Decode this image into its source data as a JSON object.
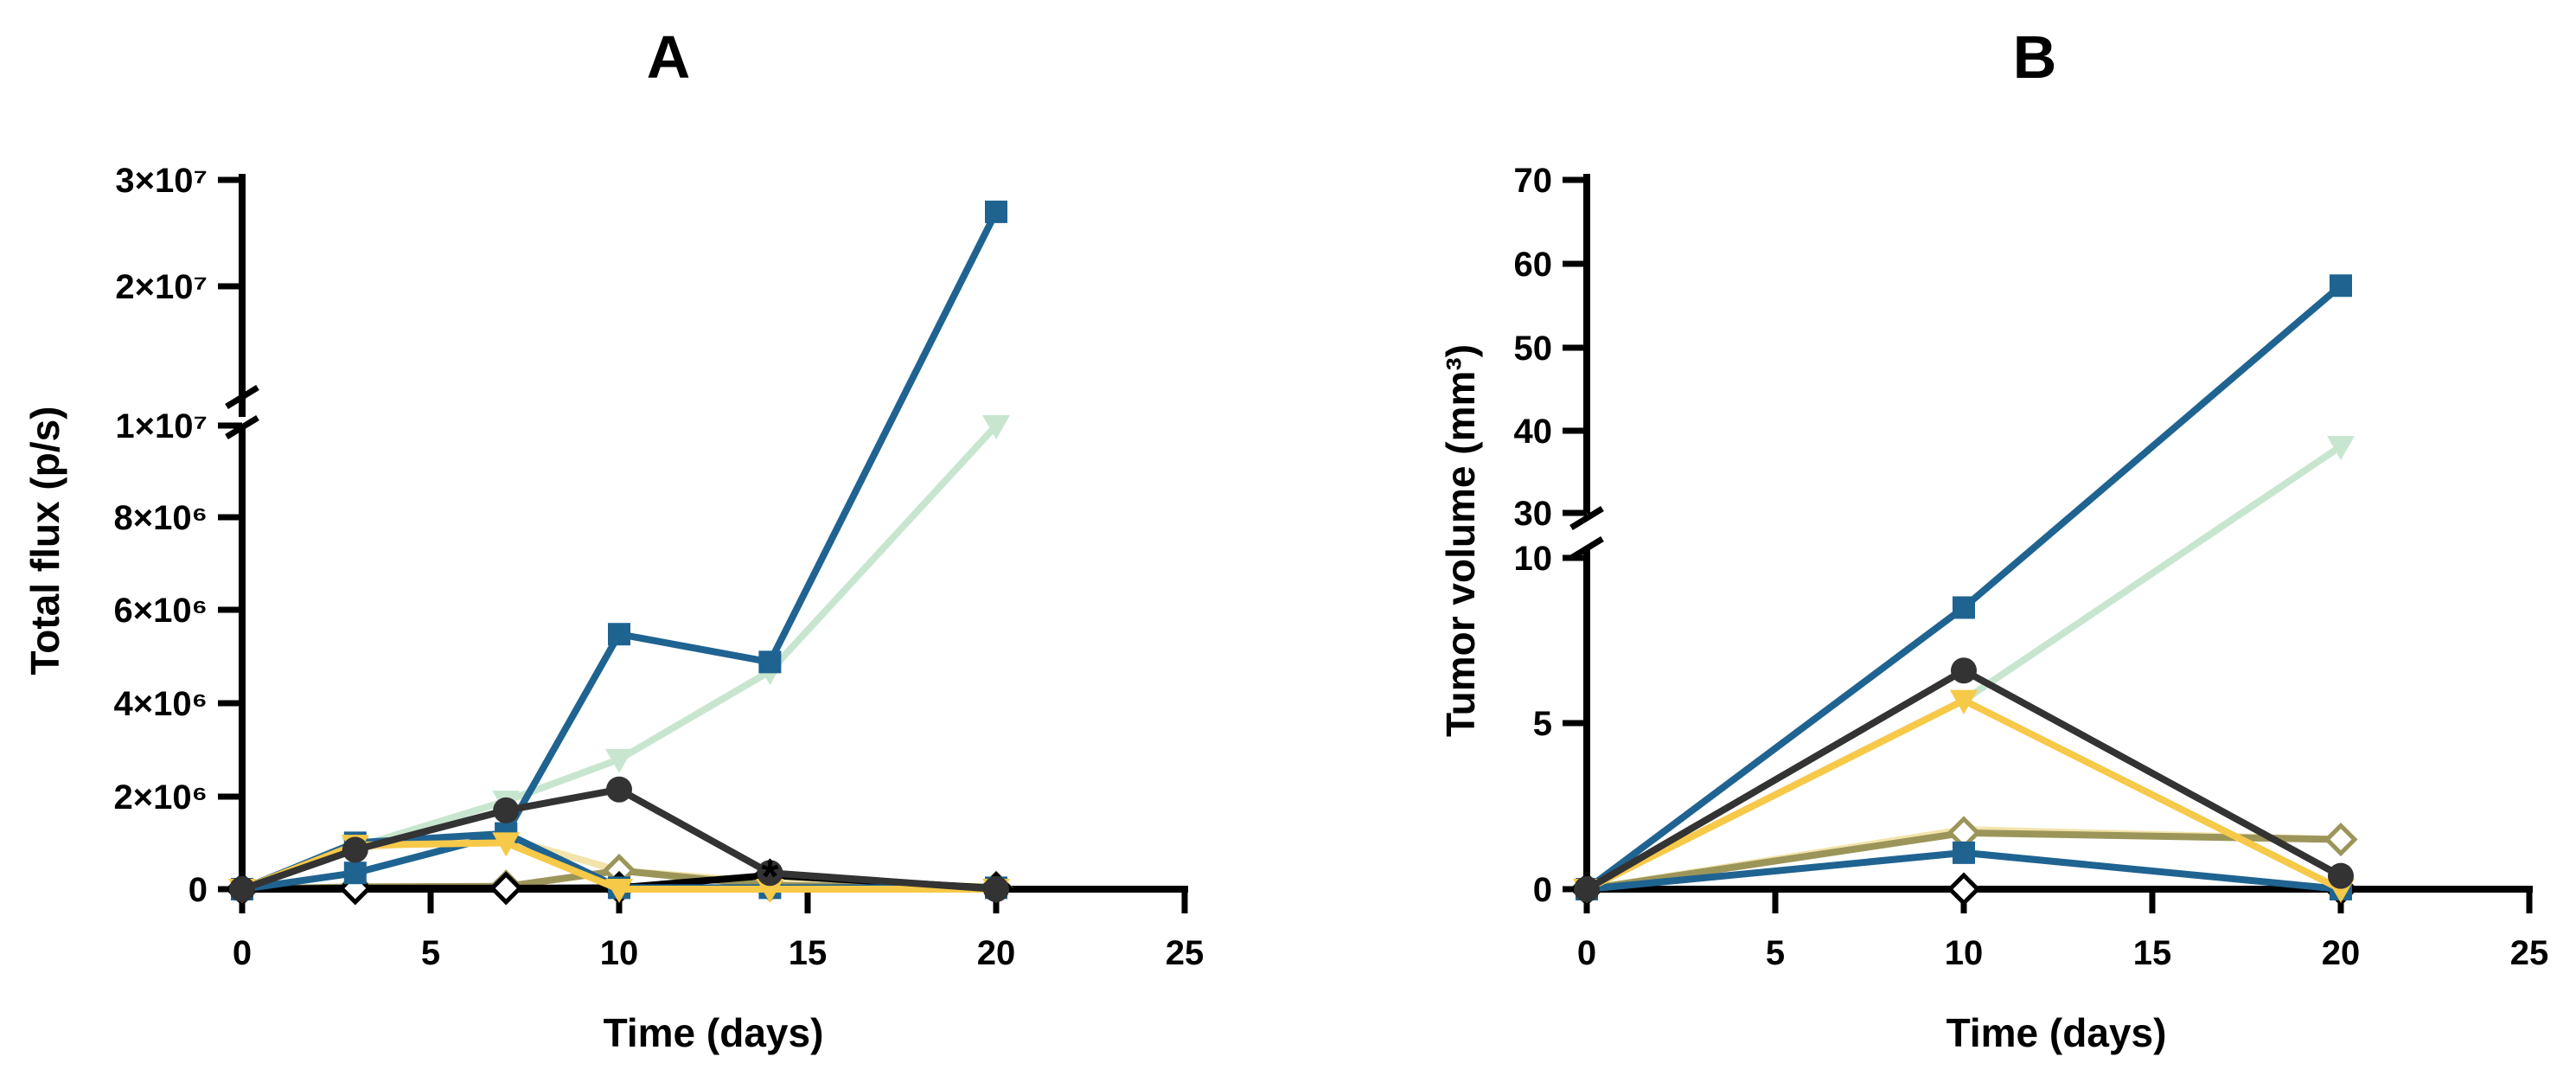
{
  "colors": {
    "blue": "#1f6391",
    "light_green": "#c8e6cf",
    "dark_gray": "#333333",
    "yellow": "#f7c948",
    "pale_yellow": "#f3e4ac",
    "olive": "#9c955a",
    "black": "#000000"
  },
  "chart_data": [
    {
      "panel": "A",
      "type": "line",
      "title": "A",
      "xlabel": "Time (days)",
      "ylabel": "Total flux (p/s)",
      "xlim": [
        0,
        25
      ],
      "x_ticks": [
        "0",
        "5",
        "10",
        "15",
        "20",
        "25"
      ],
      "y_axis_break": {
        "lower_range": [
          0,
          10000000
        ],
        "upper_range": [
          10000000,
          30000000
        ]
      },
      "y_ticks_lower": [
        "0",
        "2×10⁶",
        "4×10⁶",
        "6×10⁶",
        "8×10⁶",
        "1×10⁷"
      ],
      "y_ticks_upper": [
        "2×10⁷",
        "3×10⁷"
      ],
      "series": [
        {
          "name": "series-pale-yellow",
          "color": "pale_yellow",
          "marker": "none",
          "x": [
            0,
            3,
            7,
            10,
            14,
            20
          ],
          "y": [
            0,
            900000,
            1100000,
            400000,
            150000,
            50000
          ]
        },
        {
          "name": "series-olive-diamond",
          "color": "olive",
          "marker": "diamond",
          "x": [
            0,
            3,
            7,
            10,
            14,
            20
          ],
          "y": [
            0,
            50000,
            60000,
            400000,
            80000,
            40000
          ]
        },
        {
          "name": "series-black-diamond",
          "color": "black",
          "marker": "diamond",
          "x": [
            0,
            3,
            7,
            10,
            14,
            20
          ],
          "y": [
            0,
            20000,
            20000,
            30000,
            300000,
            20000
          ]
        },
        {
          "name": "series-light-green",
          "color": "light_green",
          "marker": "triangle",
          "x": [
            0,
            3,
            7,
            10,
            14,
            20
          ],
          "y": [
            0,
            900000,
            1900000,
            2800000,
            4700000,
            10000000
          ]
        },
        {
          "name": "series-blue-square",
          "color": "blue",
          "marker": "square",
          "x": [
            0,
            3,
            7,
            10,
            14,
            20
          ],
          "y": [
            0,
            1000000,
            1200000,
            5500000,
            4900000,
            27000000
          ]
        },
        {
          "name": "series-blue-line",
          "color": "blue",
          "marker": "square",
          "x": [
            0,
            3,
            7,
            10,
            14,
            20
          ],
          "y": [
            0,
            350000,
            1200000,
            30000,
            30000,
            30000
          ]
        },
        {
          "name": "series-yellow",
          "color": "yellow",
          "marker": "triangle",
          "x": [
            0,
            3,
            7,
            10,
            14,
            20
          ],
          "y": [
            0,
            950000,
            1000000,
            0,
            0,
            0
          ]
        },
        {
          "name": "series-dark-gray-circle",
          "color": "dark_gray",
          "marker": "circle",
          "x": [
            0,
            3,
            7,
            10,
            14,
            20
          ],
          "y": [
            0,
            850000,
            1700000,
            2150000,
            350000,
            0
          ]
        }
      ],
      "annotations": [
        {
          "text": "*",
          "x": 14,
          "y": 500000
        }
      ]
    },
    {
      "panel": "B",
      "type": "line",
      "title": "B",
      "xlabel": "Time (days)",
      "ylabel": "Tumor volume (mm³)",
      "xlim": [
        0,
        25
      ],
      "x_ticks": [
        "0",
        "5",
        "10",
        "15",
        "20",
        "25"
      ],
      "y_axis_break": {
        "lower_range": [
          0,
          10
        ],
        "upper_range": [
          30,
          70
        ]
      },
      "y_ticks_lower": [
        "0",
        "5",
        "10"
      ],
      "y_ticks_upper": [
        "30",
        "40",
        "50",
        "60",
        "70"
      ],
      "series": [
        {
          "name": "series-pale-yellow",
          "color": "pale_yellow",
          "marker": "none",
          "x": [
            0,
            10,
            20
          ],
          "y": [
            0,
            1.8,
            1.5
          ]
        },
        {
          "name": "series-pale-yellow-flat",
          "color": "pale_yellow",
          "marker": "none",
          "x": [
            0,
            10,
            20
          ],
          "y": [
            0,
            0,
            0
          ]
        },
        {
          "name": "series-olive-diamond",
          "color": "olive",
          "marker": "diamond",
          "x": [
            0,
            10,
            20
          ],
          "y": [
            0,
            1.7,
            1.5
          ]
        },
        {
          "name": "series-black-diamond",
          "color": "black",
          "marker": "diamond",
          "x": [
            0,
            10,
            20
          ],
          "y": [
            0,
            0,
            0
          ]
        },
        {
          "name": "series-light-green",
          "color": "light_green",
          "marker": "triangle",
          "x": [
            0,
            10,
            20
          ],
          "y": [
            0,
            5.7,
            38
          ]
        },
        {
          "name": "series-blue-line",
          "color": "blue",
          "marker": "square",
          "x": [
            0,
            10,
            20
          ],
          "y": [
            0,
            1.1,
            0
          ]
        },
        {
          "name": "series-blue-square",
          "color": "blue",
          "marker": "square",
          "x": [
            0,
            10,
            20
          ],
          "y": [
            0,
            8.5,
            57.3
          ]
        },
        {
          "name": "series-yellow",
          "color": "yellow",
          "marker": "triangle",
          "x": [
            0,
            10,
            20
          ],
          "y": [
            0,
            5.7,
            0
          ]
        },
        {
          "name": "series-dark-gray-circle",
          "color": "dark_gray",
          "marker": "circle",
          "x": [
            0,
            10,
            20
          ],
          "y": [
            0,
            6.6,
            0.4
          ]
        }
      ],
      "annotations": []
    }
  ]
}
